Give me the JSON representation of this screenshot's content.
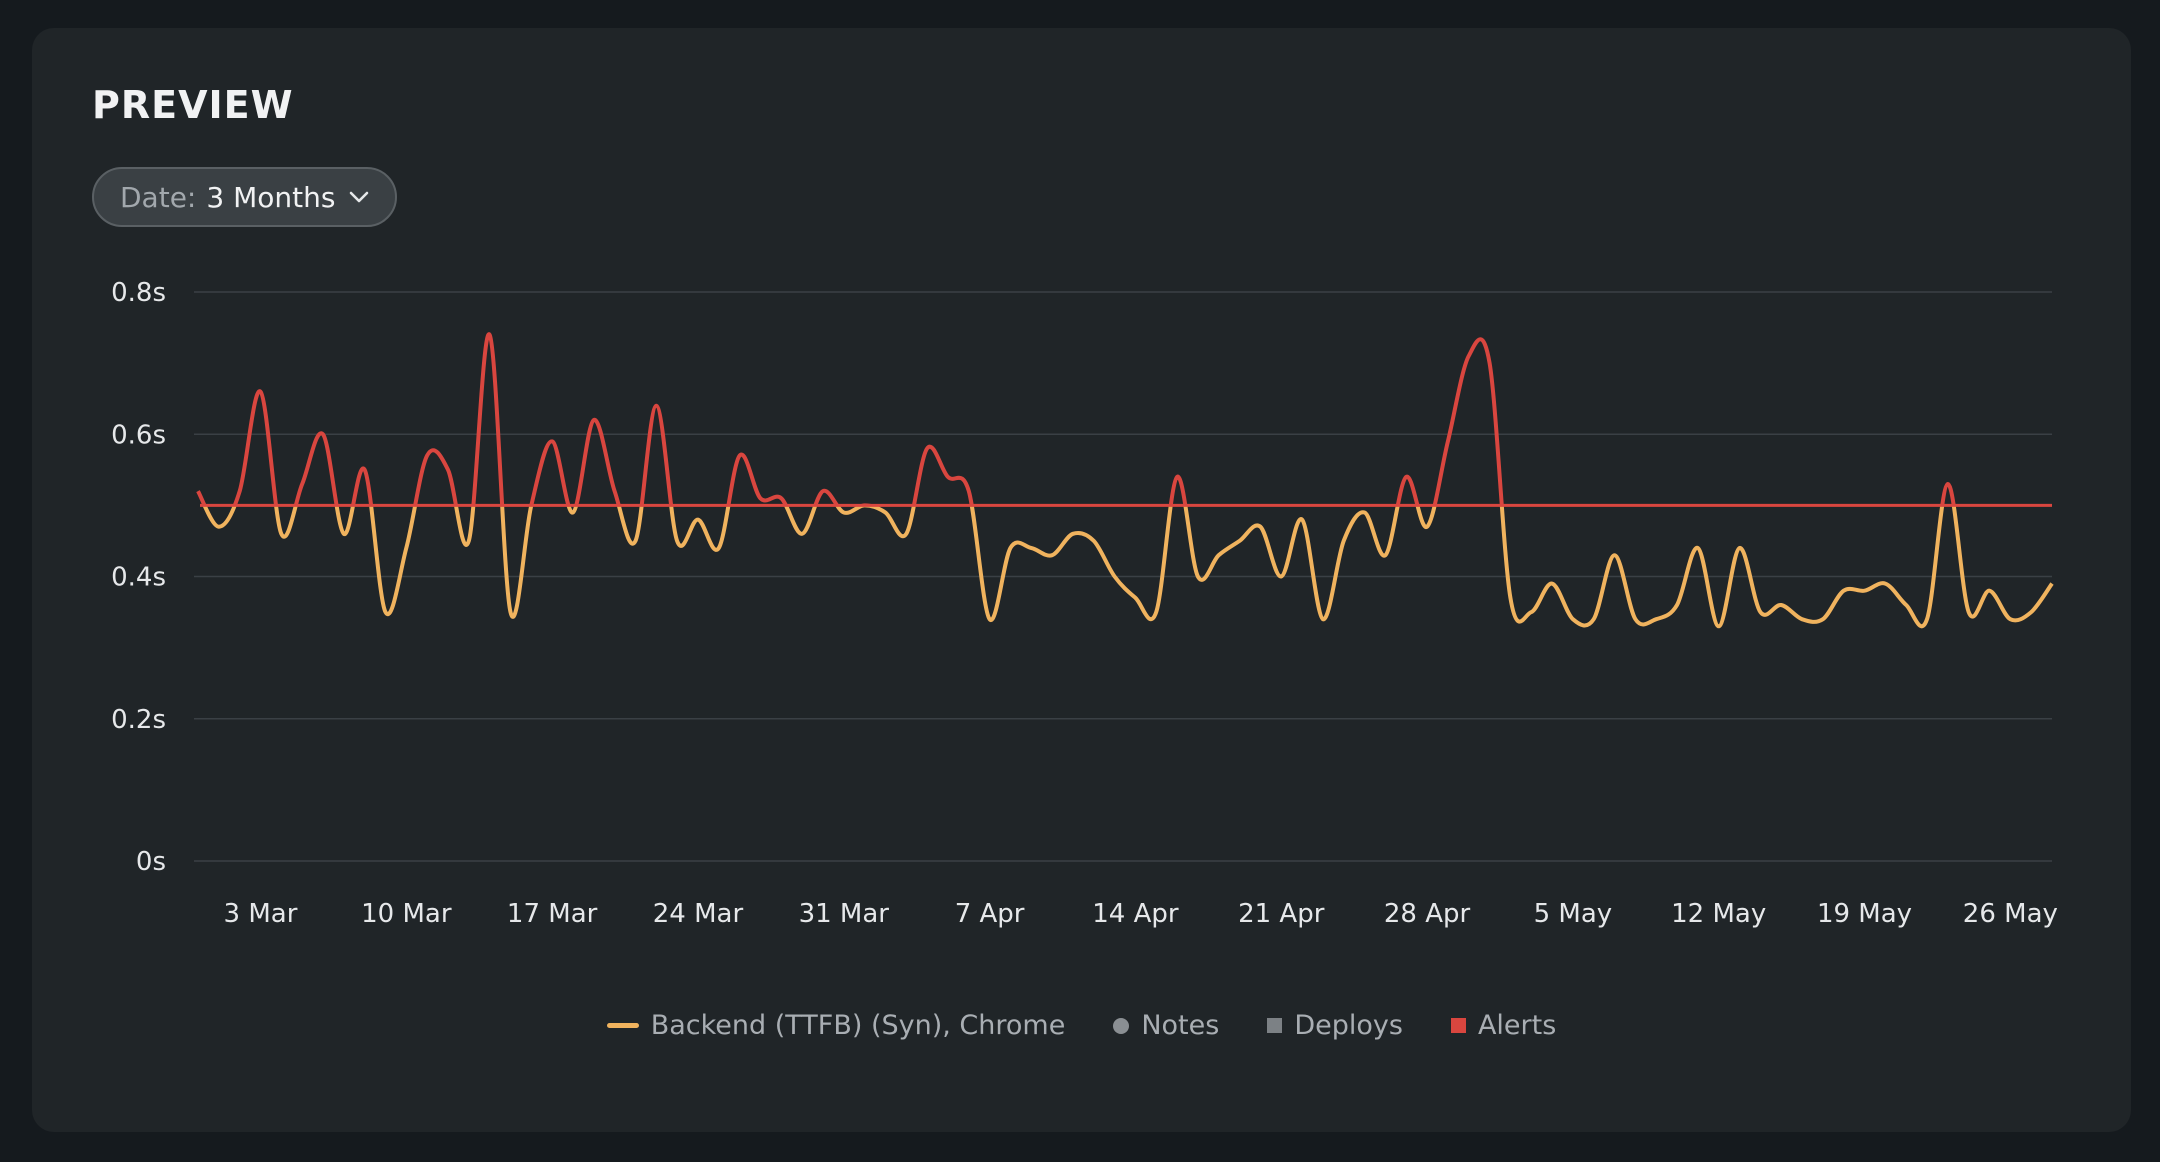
{
  "panel": {
    "title": "PREVIEW"
  },
  "date_filter": {
    "label": "Date:",
    "value": "3 Months",
    "icon": "chevron-down-icon"
  },
  "legend": [
    {
      "label": "Backend (TTFB) (Syn), Chrome",
      "shape": "line",
      "color": "#f0b35e"
    },
    {
      "label": "Notes",
      "shape": "dot",
      "color": "#8a8f93"
    },
    {
      "label": "Deploys",
      "shape": "square",
      "color": "#7c8185"
    },
    {
      "label": "Alerts",
      "shape": "square",
      "color": "#d9463f"
    }
  ],
  "colors": {
    "series": "#f0b35e",
    "alert": "#d9463f",
    "threshold": "#d9463f",
    "grid": "#3a4045"
  },
  "chart_data": {
    "type": "line",
    "title": "",
    "xlabel": "",
    "ylabel": "",
    "ylim": [
      0,
      0.8
    ],
    "yticks": [
      {
        "value": 0,
        "label": "0s"
      },
      {
        "value": 0.2,
        "label": "0.2s"
      },
      {
        "value": 0.4,
        "label": "0.4s"
      },
      {
        "value": 0.6,
        "label": "0.6s"
      },
      {
        "value": 0.8,
        "label": "0.8s"
      }
    ],
    "xlim": [
      "2025-02-28",
      "2025-05-28"
    ],
    "xticks": [
      {
        "date": "2025-03-03",
        "label": "3 Mar"
      },
      {
        "date": "2025-03-10",
        "label": "10 Mar"
      },
      {
        "date": "2025-03-17",
        "label": "17 Mar"
      },
      {
        "date": "2025-03-24",
        "label": "24 Mar"
      },
      {
        "date": "2025-03-31",
        "label": "31 Mar"
      },
      {
        "date": "2025-04-07",
        "label": "7 Apr"
      },
      {
        "date": "2025-04-14",
        "label": "14 Apr"
      },
      {
        "date": "2025-04-21",
        "label": "21 Apr"
      },
      {
        "date": "2025-04-28",
        "label": "28 Apr"
      },
      {
        "date": "2025-05-05",
        "label": "5 May"
      },
      {
        "date": "2025-05-12",
        "label": "12 May"
      },
      {
        "date": "2025-05-19",
        "label": "19 May"
      },
      {
        "date": "2025-05-26",
        "label": "26 May"
      }
    ],
    "grid": true,
    "legend_position": "bottom",
    "threshold": {
      "value": 0.5
    },
    "series": [
      {
        "name": "Backend (TTFB) (Syn), Chrome",
        "x": [
          "2025-02-28",
          "2025-03-01",
          "2025-03-02",
          "2025-03-03",
          "2025-03-04",
          "2025-03-05",
          "2025-03-06",
          "2025-03-07",
          "2025-03-08",
          "2025-03-09",
          "2025-03-10",
          "2025-03-11",
          "2025-03-12",
          "2025-03-13",
          "2025-03-14",
          "2025-03-15",
          "2025-03-16",
          "2025-03-17",
          "2025-03-18",
          "2025-03-19",
          "2025-03-20",
          "2025-03-21",
          "2025-03-22",
          "2025-03-23",
          "2025-03-24",
          "2025-03-25",
          "2025-03-26",
          "2025-03-27",
          "2025-03-28",
          "2025-03-29",
          "2025-03-30",
          "2025-03-31",
          "2025-04-01",
          "2025-04-02",
          "2025-04-03",
          "2025-04-04",
          "2025-04-05",
          "2025-04-06",
          "2025-04-07",
          "2025-04-08",
          "2025-04-09",
          "2025-04-10",
          "2025-04-11",
          "2025-04-12",
          "2025-04-13",
          "2025-04-14",
          "2025-04-15",
          "2025-04-16",
          "2025-04-17",
          "2025-04-18",
          "2025-04-19",
          "2025-04-20",
          "2025-04-21",
          "2025-04-22",
          "2025-04-23",
          "2025-04-24",
          "2025-04-25",
          "2025-04-26",
          "2025-04-27",
          "2025-04-28",
          "2025-04-29",
          "2025-04-30",
          "2025-05-01",
          "2025-05-02",
          "2025-05-03",
          "2025-05-04",
          "2025-05-05",
          "2025-05-06",
          "2025-05-07",
          "2025-05-08",
          "2025-05-09",
          "2025-05-10",
          "2025-05-11",
          "2025-05-12",
          "2025-05-13",
          "2025-05-14",
          "2025-05-15",
          "2025-05-16",
          "2025-05-17",
          "2025-05-18",
          "2025-05-19",
          "2025-05-20",
          "2025-05-21",
          "2025-05-22",
          "2025-05-23",
          "2025-05-24",
          "2025-05-25",
          "2025-05-26",
          "2025-05-27",
          "2025-05-28"
        ],
        "values": [
          0.52,
          0.47,
          0.52,
          0.66,
          0.46,
          0.53,
          0.6,
          0.46,
          0.55,
          0.35,
          0.44,
          0.57,
          0.55,
          0.45,
          0.74,
          0.35,
          0.5,
          0.59,
          0.49,
          0.62,
          0.52,
          0.45,
          0.64,
          0.45,
          0.48,
          0.44,
          0.57,
          0.51,
          0.51,
          0.46,
          0.52,
          0.49,
          0.5,
          0.49,
          0.46,
          0.58,
          0.54,
          0.52,
          0.34,
          0.44,
          0.44,
          0.43,
          0.46,
          0.45,
          0.4,
          0.37,
          0.35,
          0.54,
          0.4,
          0.43,
          0.45,
          0.47,
          0.4,
          0.48,
          0.34,
          0.45,
          0.49,
          0.43,
          0.54,
          0.47,
          0.59,
          0.71,
          0.7,
          0.37,
          0.35,
          0.39,
          0.34,
          0.34,
          0.43,
          0.34,
          0.34,
          0.36,
          0.44,
          0.33,
          0.44,
          0.35,
          0.36,
          0.34,
          0.34,
          0.38,
          0.38,
          0.39,
          0.36,
          0.34,
          0.53,
          0.35,
          0.38,
          0.34,
          0.35,
          0.39
        ]
      }
    ]
  }
}
